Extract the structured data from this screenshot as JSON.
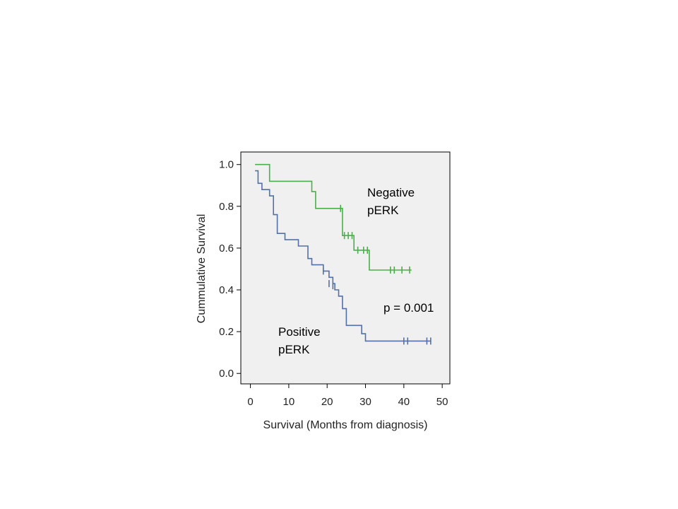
{
  "chart_data": {
    "type": "line",
    "subtype": "kaplan-meier",
    "title": "",
    "xlabel": "Survival (Months from diagnosis)",
    "ylabel": "Cummulative Survival",
    "xlim": [
      -2.5,
      52
    ],
    "ylim": [
      -0.05,
      1.06
    ],
    "xticks": [
      0,
      10,
      20,
      30,
      40,
      50
    ],
    "xtick_labels": [
      "0",
      "10",
      "20",
      "30",
      "40",
      "50"
    ],
    "yticks": [
      0.0,
      0.2,
      0.4,
      0.6,
      0.8,
      1.0
    ],
    "ytick_labels": [
      "0.0",
      "0.2",
      "0.4",
      "0.6",
      "0.8",
      "1.0"
    ],
    "grid": false,
    "plot_background": "#f0f0f0",
    "series": [
      {
        "name": "Negative pERK",
        "label_lines": [
          "Negative",
          "pERK"
        ],
        "color": "#4cae4c",
        "steps": [
          [
            1.2,
            1.0
          ],
          [
            5.0,
            0.92
          ],
          [
            16.0,
            0.87
          ],
          [
            17.0,
            0.79
          ],
          [
            24.0,
            0.66
          ],
          [
            27.0,
            0.59
          ],
          [
            31.0,
            0.495
          ],
          [
            42.0,
            0.495
          ]
        ],
        "censored": [
          [
            23.5,
            0.79
          ],
          [
            24.5,
            0.66
          ],
          [
            25.5,
            0.66
          ],
          [
            26.5,
            0.66
          ],
          [
            28.0,
            0.59
          ],
          [
            29.5,
            0.59
          ],
          [
            30.5,
            0.59
          ],
          [
            36.5,
            0.495
          ],
          [
            37.5,
            0.495
          ],
          [
            39.5,
            0.495
          ],
          [
            41.5,
            0.495
          ]
        ]
      },
      {
        "name": "Positive pERK",
        "label_lines": [
          "Positive",
          "pERK"
        ],
        "color": "#5370a8",
        "steps": [
          [
            1.2,
            0.97
          ],
          [
            2.0,
            0.91
          ],
          [
            3.0,
            0.88
          ],
          [
            5.0,
            0.85
          ],
          [
            6.0,
            0.76
          ],
          [
            7.0,
            0.67
          ],
          [
            9.0,
            0.64
          ],
          [
            12.5,
            0.61
          ],
          [
            15.0,
            0.55
          ],
          [
            16.0,
            0.52
          ],
          [
            19.0,
            0.49
          ],
          [
            20.5,
            0.46
          ],
          [
            21.5,
            0.43
          ],
          [
            22.0,
            0.4
          ],
          [
            23.0,
            0.37
          ],
          [
            24.0,
            0.31
          ],
          [
            25.0,
            0.23
          ],
          [
            29.0,
            0.19
          ],
          [
            30.0,
            0.155
          ],
          [
            47.0,
            0.155
          ]
        ],
        "censored": [
          [
            19.0,
            0.49
          ],
          [
            20.5,
            0.43
          ],
          [
            21.5,
            0.42
          ],
          [
            40.0,
            0.155
          ],
          [
            41.0,
            0.155
          ],
          [
            46.0,
            0.155
          ],
          [
            47.0,
            0.155
          ]
        ]
      }
    ],
    "annotations": [
      {
        "text": "p = 0.001",
        "x": 42.5,
        "y": 0.31
      }
    ]
  }
}
